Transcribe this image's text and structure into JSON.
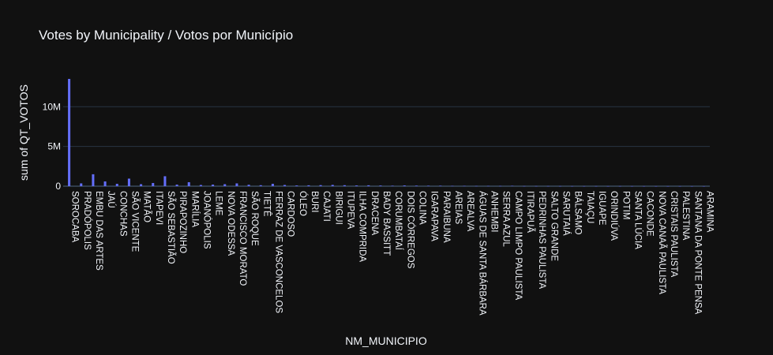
{
  "chart_data": {
    "type": "bar",
    "title": "Votes by Municipality / Votos por Município",
    "xlabel": "NM_MUNICIPIO",
    "ylabel": "sum of QT_VOTOS",
    "ylim": [
      0,
      14200000
    ],
    "yticks": [
      {
        "value": 0,
        "label": "0"
      },
      {
        "value": 5000000,
        "label": "5M"
      },
      {
        "value": 10000000,
        "label": "10M"
      }
    ],
    "grid": true,
    "bar_color": "#636efa",
    "background": "#111111",
    "categories": [
      "SOROCABA",
      "PRADÓPOLIS",
      "EMBU DAS ARTES",
      "JAÚ",
      "CONCHAS",
      "SÃO VICENTE",
      "MATÃO",
      "ITAPEVI",
      "SÃO SEBASTIÃO",
      "PIRAPOZINHO",
      "MARÍLIA",
      "JOANÓPOLIS",
      "LEME",
      "NOVA ODESSA",
      "FRANCISCO MORATO",
      "SÃO ROQUE",
      "TIETÊ",
      "FERRAZ DE VASCONCELOS",
      "CARDOSO",
      "ÓLEO",
      "BURI",
      "CAJATI",
      "BIRIGUI",
      "ITUPEVA",
      "ILHA COMPRIDA",
      "DRACENA",
      "BADY BASSITT",
      "CORUMBATAÍ",
      "DOIS CÓRREGOS",
      "COLINA",
      "IGARAPAVA",
      "PARAIBUNA",
      "AREIAS",
      "AREALVA",
      "ÁGUAS DE SANTA BÁRBARA",
      "ANHEMBI",
      "SERRA AZUL",
      "CAMPO LIMPO PAULISTA",
      "ITIRAPUÃ",
      "PEDRINHAS PAULISTA",
      "SALTO GRANDE",
      "SARUTAIÁ",
      "BÁLSAMO",
      "TAIAÇU",
      "IGUAPE",
      "ORINDIÚVA",
      "POTIM",
      "SANTA LÚCIA",
      "CACONDE",
      "NOVA CANAÃ PAULISTA",
      "CRISTAIS PAULISTA",
      "PALESTINA",
      "SANTANA DA PONTE PENSA",
      "ARAMINA"
    ],
    "values": [
      13500000,
      350000,
      1500000,
      600000,
      300000,
      950000,
      250000,
      400000,
      1250000,
      200000,
      500000,
      150000,
      200000,
      250000,
      350000,
      180000,
      120000,
      300000,
      150000,
      90000,
      110000,
      130000,
      160000,
      120000,
      90000,
      110000,
      80000,
      60000,
      90000,
      70000,
      60000,
      60000,
      40000,
      40000,
      30000,
      35000,
      30000,
      50000,
      20000,
      20000,
      20000,
      15000,
      12000,
      12000,
      15000,
      10000,
      12000,
      10000,
      10000,
      8000,
      8000,
      8000,
      5000,
      6000
    ]
  }
}
